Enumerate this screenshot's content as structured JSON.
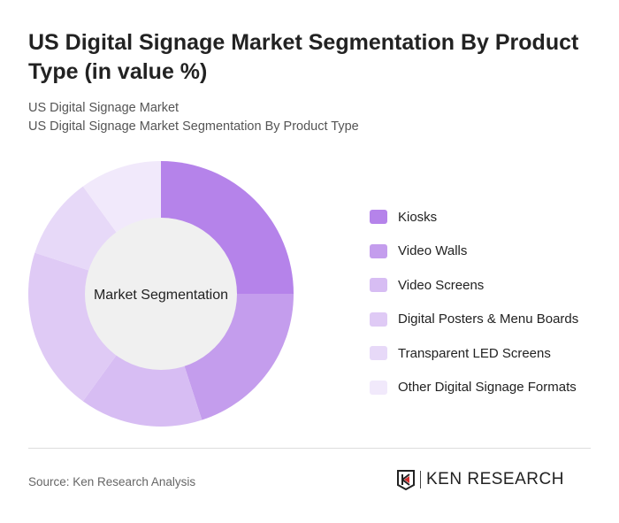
{
  "title": "US Digital Signage Market Segmentation By Product Type (in value %)",
  "subtitle1": "US Digital Signage Market",
  "subtitle2": "US Digital Signage Market Segmentation By Product Type",
  "source": "Source: Ken Research Analysis",
  "logo_text": "KEN RESEARCH",
  "chart_data": {
    "type": "pie",
    "variant": "donut",
    "center_label": "Market Segmentation",
    "legend_position": "right",
    "categories": [
      "Kiosks",
      "Video Walls",
      "Video Screens",
      "Digital Posters & Menu Boards",
      "Transparent LED Screens",
      "Other Digital Signage Formats"
    ],
    "values": [
      25,
      20,
      15,
      20,
      10,
      10
    ],
    "colors": [
      "#b583ea",
      "#c49ded",
      "#d7bdf3",
      "#dfcaf5",
      "#e7d9f8",
      "#f1e9fb"
    ]
  }
}
